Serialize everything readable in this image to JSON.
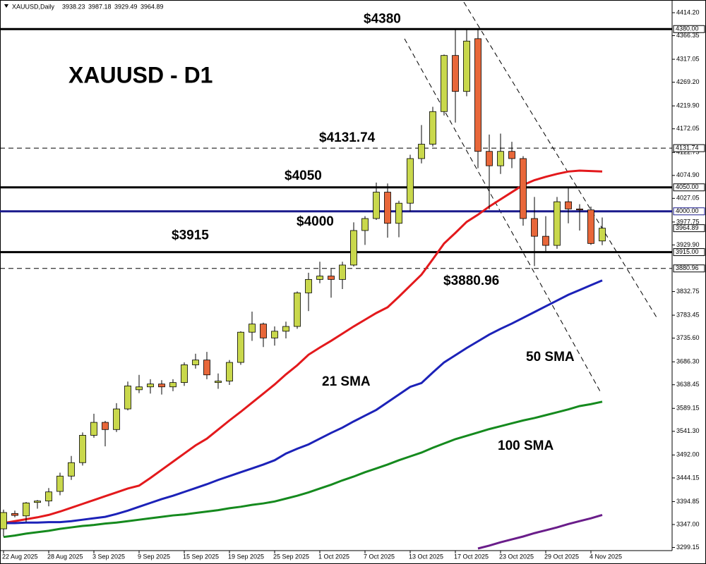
{
  "chart_data": {
    "type": "candlestick",
    "title": "XAUUSD - D1",
    "symbol": "XAUUSD,Daily",
    "categories": [
      "22 Aug 2025",
      null,
      null,
      null,
      "28 Aug 2025",
      null,
      null,
      null,
      "3 Sep 2025",
      null,
      null,
      null,
      "9 Sep 2025",
      null,
      null,
      null,
      "15 Sep 2025",
      null,
      null,
      null,
      "19 Sep 2025",
      null,
      null,
      null,
      "25 Sep 2025",
      null,
      null,
      null,
      "1 Oct 2025",
      null,
      null,
      null,
      "7 Oct 2025",
      null,
      null,
      null,
      "13 Oct 2025",
      null,
      null,
      null,
      "17 Oct 2025",
      null,
      null,
      null,
      "23 Oct 2025",
      null,
      null,
      null,
      "29 Oct 2025",
      null,
      null,
      null,
      "4 Nov 2025",
      null
    ],
    "open": [
      3338,
      3370,
      3365,
      3393,
      3396,
      3416,
      3448,
      3476,
      3533,
      3560,
      3545,
      3588,
      3628,
      3634,
      3640,
      3634,
      3643,
      3680,
      3690,
      3643,
      3646,
      3685,
      3748,
      3765,
      3736,
      3750,
      3760,
      3830,
      3858,
      3865,
      3858,
      3888,
      3960,
      3985,
      4040,
      3975,
      4017,
      4110,
      4140,
      4208,
      4325,
      4250,
      4360,
      4125,
      4095,
      4125,
      4110,
      3985,
      3948,
      3929,
      4020,
      4005,
      4003,
      3938.23
    ],
    "high": [
      3378,
      3376,
      3394,
      3398,
      3423,
      3455,
      3490,
      3539,
      3578,
      3563,
      3600,
      3645,
      3659,
      3650,
      3648,
      3650,
      3685,
      3703,
      3707,
      3662,
      3690,
      3750,
      3791,
      3768,
      3760,
      3770,
      3833,
      3872,
      3895,
      3880,
      3895,
      3977,
      3990,
      4060,
      4058,
      4022,
      4118,
      4180,
      4218,
      4327,
      4380,
      4380,
      4381,
      4160,
      4162,
      4145,
      4115,
      4030,
      3990,
      4030,
      4050,
      4015,
      4010,
      3987.18
    ],
    "low": [
      3322,
      3362,
      3352,
      3380,
      3385,
      3408,
      3440,
      3470,
      3528,
      3510,
      3540,
      3585,
      3621,
      3620,
      3618,
      3625,
      3636,
      3672,
      3650,
      3630,
      3638,
      3680,
      3730,
      3717,
      3720,
      3735,
      3755,
      3792,
      3850,
      3820,
      3838,
      3885,
      3930,
      3982,
      3945,
      3946,
      4000,
      4100,
      4135,
      4200,
      4185,
      4240,
      4090,
      4004,
      4078,
      4090,
      3970,
      3886,
      3915,
      3922,
      3975,
      3960,
      3930,
      3929.49
    ],
    "close": [
      3372,
      3366,
      3392,
      3396,
      3415,
      3448,
      3476,
      3533,
      3560,
      3545,
      3588,
      3636,
      3634,
      3640,
      3634,
      3643,
      3680,
      3690,
      3659,
      3646,
      3685,
      3748,
      3765,
      3736,
      3750,
      3760,
      3830,
      3858,
      3865,
      3858,
      3888,
      3960,
      3985,
      4040,
      3975,
      4017,
      4110,
      4140,
      4208,
      4325,
      4250,
      4355,
      4125,
      4095,
      4125,
      4110,
      3985,
      3948,
      3929,
      4020,
      4005,
      4003,
      3933,
      3964.89
    ],
    "up_color": "#c9d84c",
    "down_color": "#e8673a",
    "series": [
      {
        "name": "21 SMA",
        "color": "#e3191c",
        "values": [
          3350,
          3354,
          3358,
          3362,
          3367,
          3374,
          3382,
          3390,
          3398,
          3406,
          3414,
          3422,
          3428,
          3444,
          3461,
          3478,
          3495,
          3512,
          3526,
          3545,
          3564,
          3582,
          3601,
          3620,
          3639,
          3660,
          3679,
          3701,
          3716,
          3730,
          3745,
          3760,
          3774,
          3788,
          3800,
          3822,
          3845,
          3868,
          3900,
          3933,
          3955,
          3978,
          3993,
          4010,
          4025,
          4040,
          4055,
          4065,
          4072,
          4078,
          4083,
          4085,
          4084,
          4083
        ]
      },
      {
        "name": "50 SMA",
        "color": "#1c22b8",
        "values": [
          3350,
          3350,
          3351,
          3351,
          3352,
          3352,
          3354,
          3357,
          3360,
          3363,
          3369,
          3376,
          3384,
          3392,
          3400,
          3407,
          3415,
          3423,
          3431,
          3440,
          3448,
          3456,
          3464,
          3472,
          3481,
          3495,
          3505,
          3514,
          3526,
          3538,
          3549,
          3562,
          3574,
          3586,
          3602,
          3618,
          3634,
          3642,
          3664,
          3685,
          3700,
          3715,
          3729,
          3743,
          3755,
          3766,
          3778,
          3790,
          3802,
          3814,
          3826,
          3836,
          3846,
          3856
        ]
      },
      {
        "name": "100 SMA",
        "color": "#158a1e",
        "values": [
          3321,
          3324,
          3328,
          3331,
          3334,
          3338,
          3341,
          3344,
          3346,
          3349,
          3351,
          3354,
          3357,
          3360,
          3363,
          3366,
          3368,
          3371,
          3374,
          3377,
          3381,
          3384,
          3388,
          3391,
          3395,
          3401,
          3407,
          3414,
          3422,
          3430,
          3439,
          3447,
          3456,
          3464,
          3472,
          3481,
          3489,
          3497,
          3507,
          3516,
          3525,
          3532,
          3539,
          3546,
          3552,
          3558,
          3564,
          3569,
          3575,
          3581,
          3587,
          3594,
          3598,
          3603
        ]
      },
      {
        "color": "#6a1d8a",
        "values": [
          null,
          null,
          null,
          null,
          null,
          null,
          null,
          null,
          null,
          null,
          null,
          null,
          null,
          null,
          null,
          null,
          null,
          null,
          null,
          null,
          null,
          null,
          null,
          null,
          null,
          null,
          null,
          null,
          null,
          null,
          null,
          null,
          null,
          null,
          null,
          null,
          null,
          null,
          null,
          null,
          null,
          null,
          3297,
          3303,
          3310,
          3316,
          3322,
          3329,
          3335,
          3341,
          3348,
          3354,
          3360,
          3367
        ]
      }
    ],
    "levels": [
      {
        "value": 4380,
        "label": "4380.00",
        "annotation": "$4380",
        "color": "#000000",
        "style": "solid"
      },
      {
        "value": 4131.74,
        "label": "4131.74",
        "annotation": "$4131.74",
        "color": "#000000",
        "style": "dashed"
      },
      {
        "value": 4050,
        "label": "4050.00",
        "annotation": "$4050",
        "color": "#000000",
        "style": "solid"
      },
      {
        "value": 4000,
        "label": "4000.00",
        "annotation": "$4000",
        "color": "#1a1a8c",
        "style": "solid"
      },
      {
        "value": 3915,
        "label": "3915.00",
        "annotation": "$3915",
        "color": "#000000",
        "style": "solid"
      },
      {
        "value": 3880.96,
        "label": "3880.96",
        "annotation": "$3880.96",
        "color": "#000000",
        "style": "dashed"
      }
    ],
    "ylim": [
      3292.6,
      4433.3
    ],
    "yticks": [
      {
        "value": 4414.2,
        "label": "4414.20"
      },
      4366.35,
      4317.05,
      {
        "value": 4269.2,
        "label": "4269.20"
      },
      {
        "value": 4219.9,
        "label": "4219.90"
      },
      4172.05,
      4122.75,
      {
        "value": 4074.9,
        "label": "4074.90"
      },
      4027.05,
      3977.75,
      {
        "value": 3929.9,
        "label": "3929.90"
      },
      3832.75,
      3783.45,
      {
        "value": 3735.6,
        "label": "3735.60"
      },
      {
        "value": 3686.3,
        "label": "3686.30"
      },
      3638.45,
      3589.15,
      {
        "value": 3541.3,
        "label": "3541.30"
      },
      {
        "value": 3492,
        "label": "3492.00"
      },
      3444.15,
      3394.85,
      {
        "value": 3347,
        "label": "3347.00"
      },
      3299.15
    ]
  }
}
